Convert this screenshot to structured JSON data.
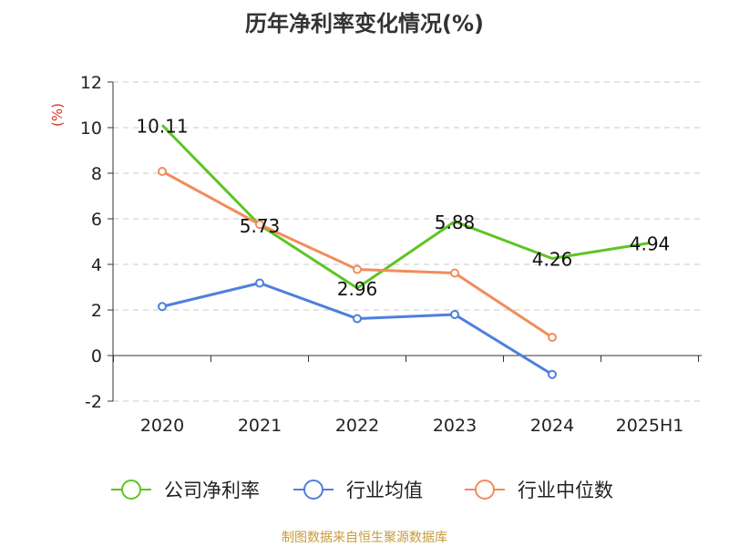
{
  "chart_data": {
    "type": "line",
    "title": "历年净利率变化情况(%)",
    "ylabel": "(%)",
    "categories": [
      "2020",
      "2021",
      "2022",
      "2023",
      "2024",
      "2025H1"
    ],
    "y_ticks": [
      "12",
      "10",
      "8",
      "6",
      "4",
      "2",
      "0",
      "-2"
    ],
    "ylim": [
      -2,
      12
    ],
    "grid": true,
    "legend_position": "bottom",
    "series": [
      {
        "name": "公司净利率",
        "color": "#5ec424",
        "values": [
          10.11,
          5.73,
          2.96,
          5.88,
          4.26,
          4.94
        ],
        "labels": [
          "10.11",
          "5.73",
          "2.96",
          "5.88",
          "4.26",
          "4.94"
        ],
        "markers": false
      },
      {
        "name": "行业均值",
        "color": "#4f7fdc",
        "values": [
          2.15,
          3.18,
          1.62,
          1.8,
          -0.83,
          null
        ],
        "markers": true
      },
      {
        "name": "行业中位数",
        "color": "#f28c5c",
        "values": [
          8.08,
          5.75,
          3.78,
          3.62,
          0.8,
          null
        ],
        "markers": true
      }
    ]
  },
  "footer": {
    "source": "制图数据来自恒生聚源数据库"
  }
}
